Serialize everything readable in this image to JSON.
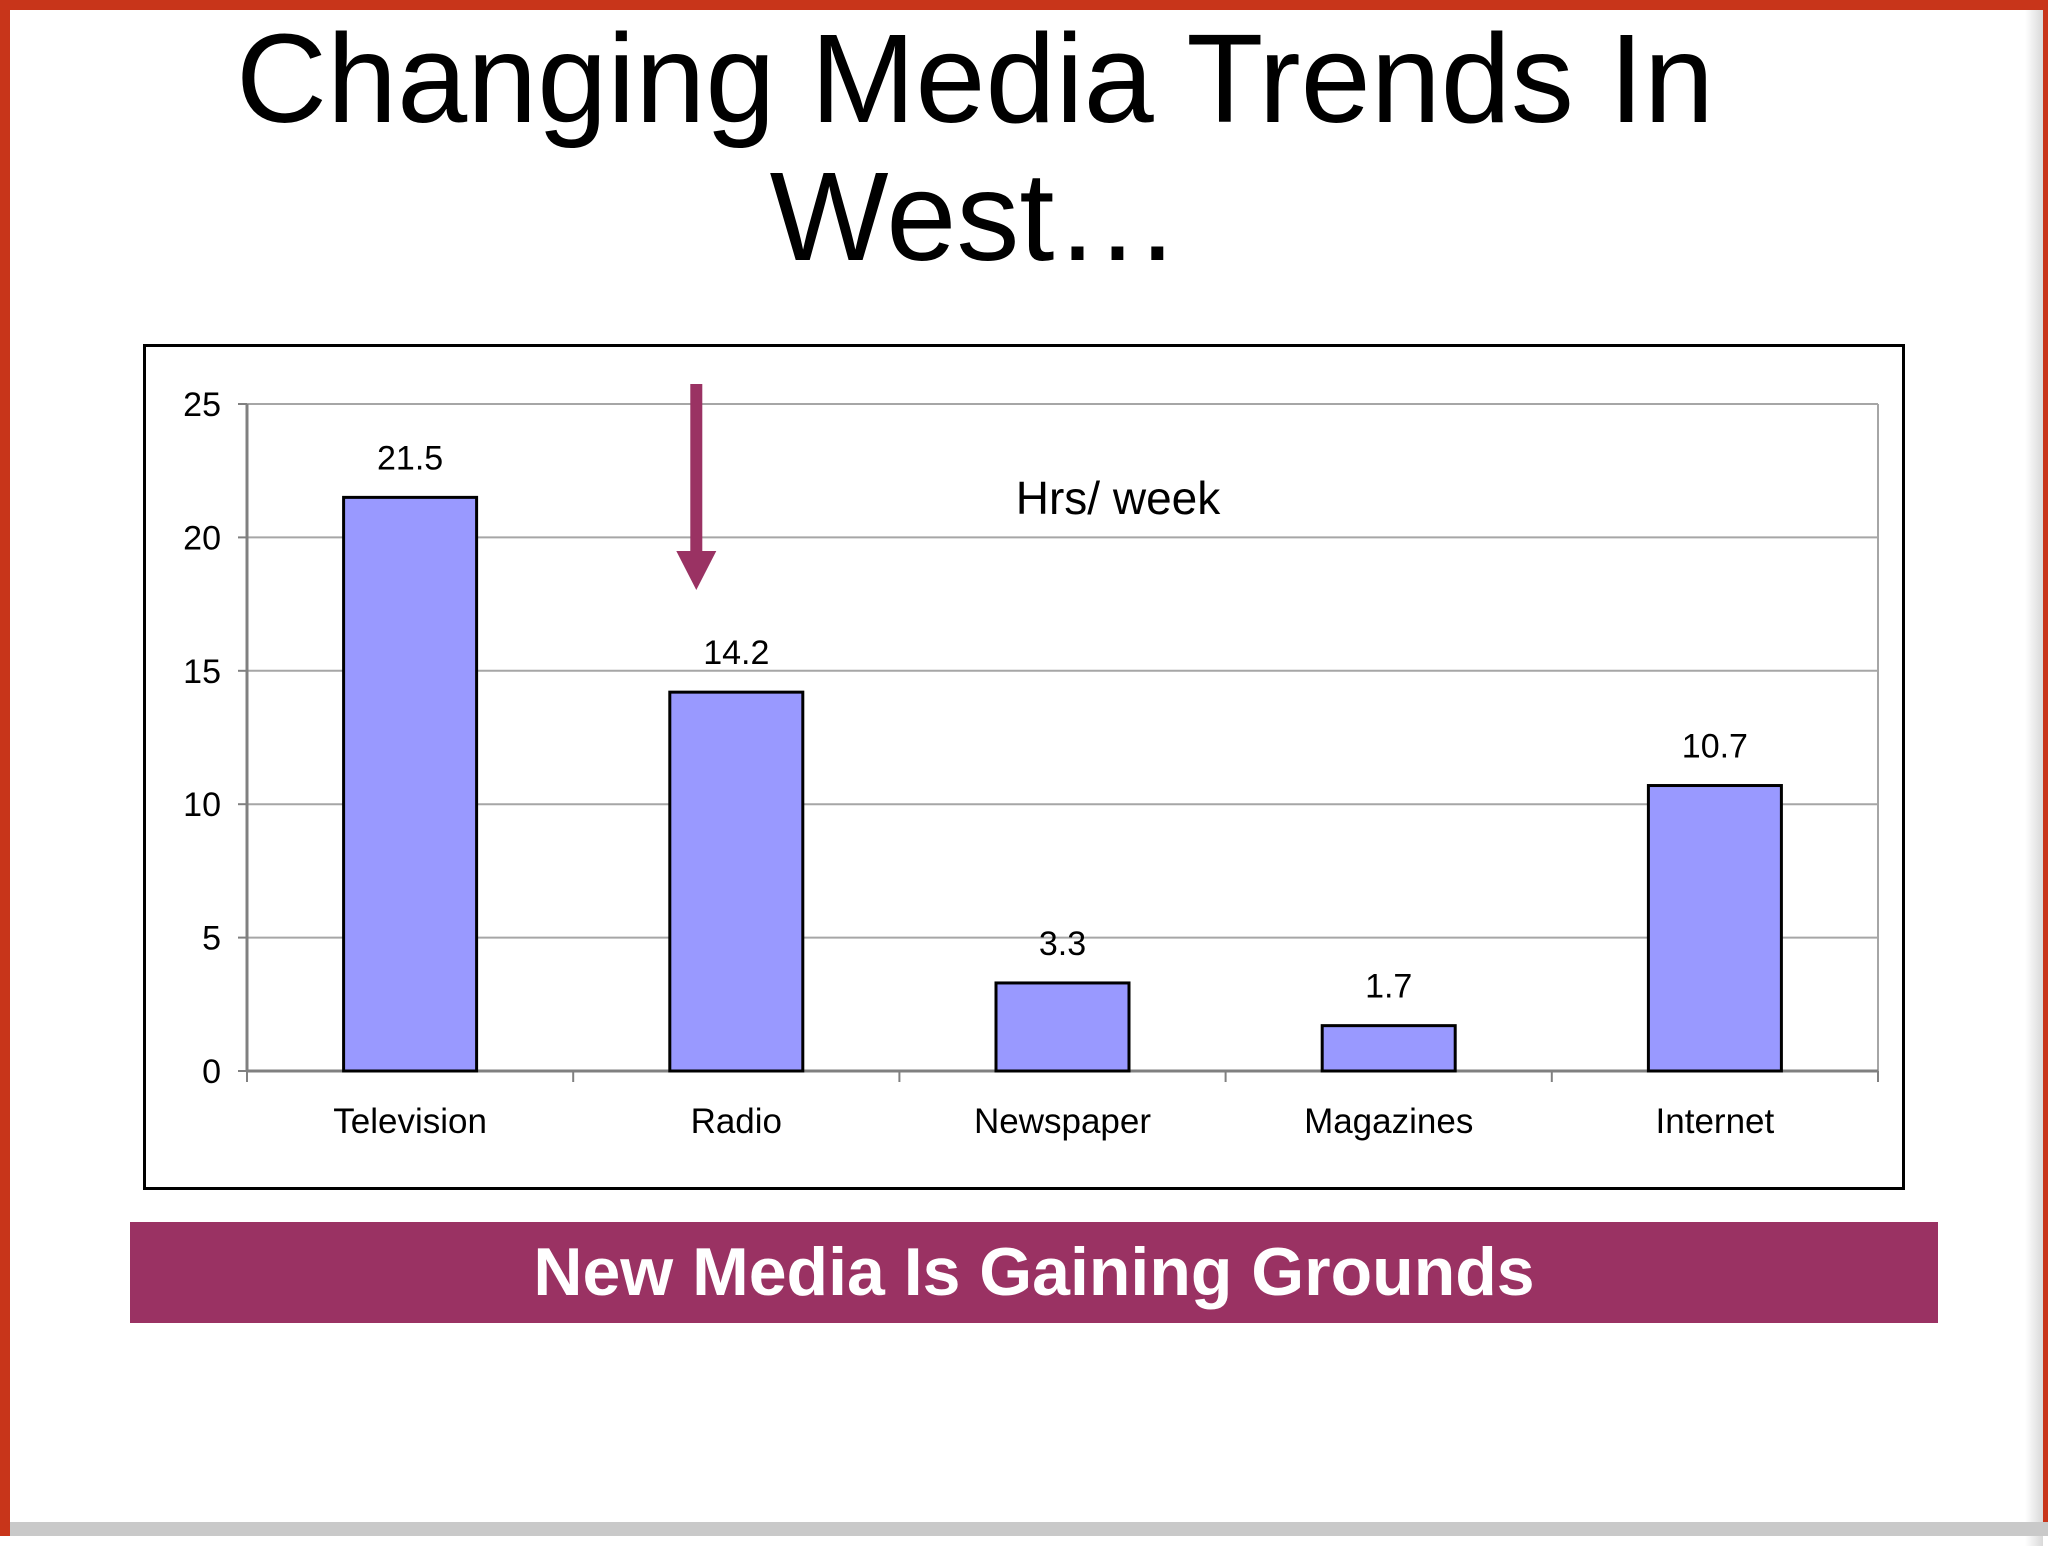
{
  "slide": {
    "title": "Changing Media Trends In West…",
    "banner_text": "New Media Is Gaining Grounds"
  },
  "colors": {
    "frame_border": "#c8351a",
    "bar_fill": "#9999ff",
    "bar_stroke": "#000000",
    "arrow": "#9a3263",
    "banner_bg": "#9a3263",
    "banner_text": "#ffffff",
    "gridline": "#a6a6a6"
  },
  "chart_data": {
    "type": "bar",
    "categories": [
      "Television",
      "Radio",
      "Newspaper",
      "Magazines",
      "Internet"
    ],
    "values": [
      21.5,
      14.2,
      3.3,
      1.7,
      10.7
    ],
    "data_labels": [
      "21.5",
      "14.2",
      "3.3",
      "1.7",
      "10.7"
    ],
    "annotation": "Hrs/ week",
    "title": "",
    "xlabel": "",
    "ylabel": "",
    "ylim": [
      0,
      25
    ],
    "yticks": [
      0,
      5,
      10,
      15,
      20,
      25
    ],
    "grid": true,
    "legend": "none",
    "highlight": {
      "category": "Radio",
      "marker": "down-arrow"
    }
  }
}
